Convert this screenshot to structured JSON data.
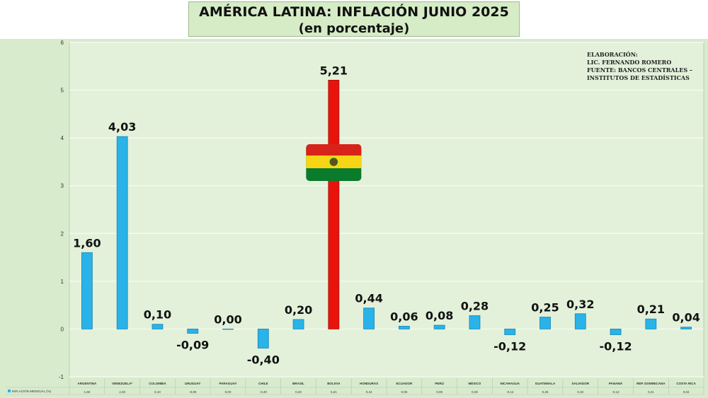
{
  "title": "AMÉRICA LATINA: INFLACIÓN JUNIO 2025",
  "subtitle": "(en porcentaje)",
  "credits": [
    "ELABORACIÓN:",
    "LIC. FERNANDO ROMERO",
    "FUENTE: BANCOS CENTRALES –",
    "INSTITUTOS DE ESTADÍSTICAS"
  ],
  "colors": {
    "bar": "#29b3e8",
    "highlight": "#e8140c",
    "plot_bg": "#e3f1da",
    "outer_bg": "#d8ebcd"
  },
  "flag_icon": "bolivia-flag-icon",
  "chart_data": {
    "type": "bar",
    "categories": [
      "ARGENTINA",
      "VENEZUELA*",
      "COLOMBIA",
      "URUGUAY",
      "PARAGUAY",
      "CHILE",
      "BRASIL",
      "BOLIVIA",
      "HONDURAS",
      "ECUADOR",
      "PERÚ",
      "MÉXICO",
      "NICARAGUA",
      "GUATEMALA",
      "SALVADOR",
      "PANAMÁ",
      "REP. DOMINICANA",
      "COSTA RICA"
    ],
    "series": [
      {
        "name": "INFLACIÓN MENSUAL (%)",
        "values": [
          1.6,
          4.03,
          0.1,
          -0.09,
          0.0,
          -0.4,
          0.2,
          5.21,
          0.44,
          0.06,
          0.08,
          0.28,
          -0.12,
          0.25,
          0.32,
          -0.12,
          0.21,
          0.04
        ]
      }
    ],
    "data_labels": [
      "1,60",
      "4,03",
      "0,10",
      "-0,09",
      "0,00",
      "-0,40",
      "0,20",
      "5,21",
      "0,44",
      "0,06",
      "0,08",
      "0,28",
      "-0,12",
      "0,25",
      "0,32",
      "-0,12",
      "0,21",
      "0,04"
    ],
    "table_values": [
      "1,60",
      "4,03",
      "0,10",
      "-0,09",
      "0,00",
      "-0,40",
      "0,20",
      "5,21",
      "0,44",
      "0,06",
      "0,08",
      "0,28",
      "-0,12",
      "0,25",
      "0,32",
      "-0,12",
      "0,21",
      "0,04"
    ],
    "highlight_category": "BOLIVIA",
    "yticks": [
      "6",
      "5",
      "4",
      "3",
      "2",
      "1",
      "0",
      "-1"
    ],
    "ylim": [
      -1,
      6
    ],
    "grid": true,
    "legend": "data table below x-axis"
  }
}
